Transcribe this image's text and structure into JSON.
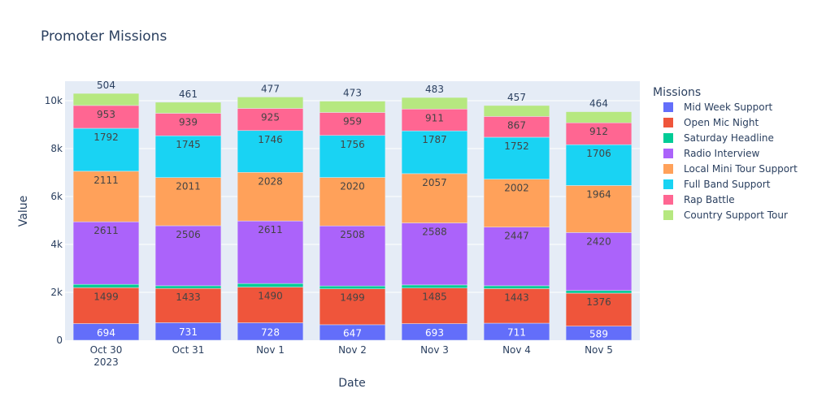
{
  "chart_data": {
    "type": "bar",
    "barmode": "stack",
    "title": "Promoter Missions",
    "xlabel": "Date",
    "ylabel": "Value",
    "ylim": [
      0,
      10800
    ],
    "yticks": [
      0,
      2000,
      4000,
      6000,
      8000,
      10000
    ],
    "ytick_labels": [
      "0",
      "2k",
      "4k",
      "6k",
      "8k",
      "10k"
    ],
    "categories": [
      "Oct 30",
      "Oct 31",
      "Nov 1",
      "Nov 2",
      "Nov 3",
      "Nov 4",
      "Nov 5"
    ],
    "category_sublabels": [
      "2023",
      "",
      "",
      "",
      "",
      "",
      ""
    ],
    "grid": true,
    "legend": {
      "title": "Missions",
      "placement": "right"
    },
    "series": [
      {
        "name": "Mid Week Support",
        "color": "#636efa",
        "label_color": "#ffffff",
        "values": [
          694,
          731,
          728,
          647,
          693,
          711,
          589
        ],
        "show_labels": true
      },
      {
        "name": "Open Mic Night",
        "color": "#ef553b",
        "label_color": "#444444",
        "values": [
          1499,
          1433,
          1490,
          1499,
          1485,
          1443,
          1376
        ],
        "show_labels": true
      },
      {
        "name": "Saturday Headline",
        "color": "#00cc96",
        "label_color": "#444444",
        "values": [
          140,
          110,
          150,
          120,
          130,
          120,
          110
        ],
        "show_labels": false
      },
      {
        "name": "Radio Interview",
        "color": "#ab63fa",
        "label_color": "#444444",
        "values": [
          2611,
          2506,
          2611,
          2508,
          2588,
          2447,
          2420
        ],
        "show_labels": true
      },
      {
        "name": "Local Mini Tour Support",
        "color": "#ffa15a",
        "label_color": "#444444",
        "values": [
          2111,
          2011,
          2028,
          2020,
          2057,
          2002,
          1964
        ],
        "show_labels": true
      },
      {
        "name": "Full Band Support",
        "color": "#19d3f3",
        "label_color": "#444444",
        "values": [
          1792,
          1745,
          1746,
          1756,
          1787,
          1752,
          1706
        ],
        "show_labels": true
      },
      {
        "name": "Rap Battle",
        "color": "#ff6692",
        "label_color": "#444444",
        "values": [
          953,
          939,
          925,
          959,
          911,
          867,
          912
        ],
        "show_labels": true
      },
      {
        "name": "Country Support Tour",
        "color": "#b6e880",
        "label_color": "#2a3f5f",
        "values": [
          504,
          461,
          477,
          473,
          483,
          457,
          464
        ],
        "show_labels": true,
        "label_outside": true
      }
    ]
  }
}
